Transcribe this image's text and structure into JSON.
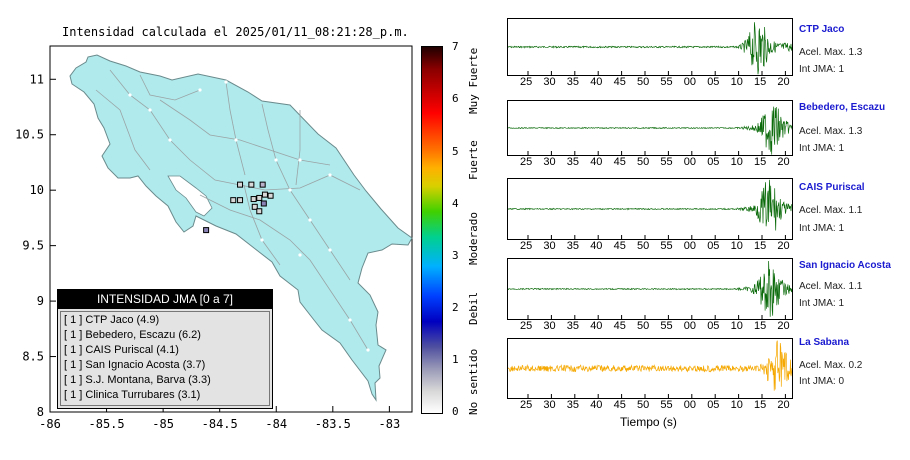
{
  "map": {
    "title": "Intensidad calculada el 2025/01/11_08:21:28_p.m.",
    "x_ticks": [
      "-86",
      "-85.5",
      "-85",
      "-84.5",
      "-84",
      "-83.5",
      "-83"
    ],
    "x_values": [
      -86,
      -85.5,
      -85,
      -84.5,
      -84,
      -83.5,
      -83
    ],
    "y_ticks": [
      "11",
      "10.5",
      "10",
      "9.5",
      "9",
      "8.5",
      "8"
    ],
    "y_values": [
      11,
      10.5,
      10,
      9.5,
      9,
      8.5,
      8
    ],
    "xlim": [
      -86,
      -82.8
    ],
    "ylim": [
      8,
      11.3
    ],
    "land_color": "#b0eaec",
    "stations": [
      {
        "lon": -84.32,
        "lat": 10.05,
        "color": "#d9d9d9"
      },
      {
        "lon": -84.22,
        "lat": 10.05,
        "color": "#d9d9d9"
      },
      {
        "lon": -84.12,
        "lat": 10.05,
        "color": "#b9b1c9"
      },
      {
        "lon": -84.1,
        "lat": 9.96,
        "color": "#d9d9d9"
      },
      {
        "lon": -84.05,
        "lat": 9.95,
        "color": "#d9d9d9"
      },
      {
        "lon": -84.15,
        "lat": 9.93,
        "color": "#d9d9d9"
      },
      {
        "lon": -84.38,
        "lat": 9.91,
        "color": "#d9d9d9"
      },
      {
        "lon": -84.32,
        "lat": 9.91,
        "color": "#d9d9d9"
      },
      {
        "lon": -84.2,
        "lat": 9.92,
        "color": "#d9d9d9"
      },
      {
        "lon": -84.11,
        "lat": 9.88,
        "color": "#8a82b4"
      },
      {
        "lon": -84.19,
        "lat": 9.85,
        "color": "#d9d9d9"
      },
      {
        "lon": -84.15,
        "lat": 9.81,
        "color": "#d9d9d9"
      },
      {
        "lon": -84.62,
        "lat": 9.64,
        "color": "#8a82b4"
      }
    ]
  },
  "legend": {
    "title": "INTENSIDAD JMA [0 a 7]",
    "items": [
      "[ 1 ]  CTP Jaco (4.9)",
      "[ 1 ]  Bebedero, Escazu (6.2)",
      "[ 1 ]  CAIS Puriscal (4.1)",
      "[ 1 ]  San Ignacio Acosta (3.7)",
      "[ 1 ]  S.J. Montana, Barva (3.3)",
      "[ 1 ]  Clinica Turrubares (3.1)"
    ]
  },
  "colorbar": {
    "ticks": [
      "7",
      "6",
      "5",
      "4",
      "3",
      "2",
      "1",
      "0"
    ],
    "labels": [
      "Muy Fuerte",
      "Fuerte",
      "Moderado",
      "Debil",
      "No sentido"
    ]
  },
  "waveforms": {
    "x_ticks": [
      "25",
      "30",
      "35",
      "40",
      "45",
      "50",
      "55",
      "00",
      "05",
      "10",
      "15",
      "20"
    ],
    "xlabel": "Tiempo (s)",
    "stations": [
      {
        "name": "CTP Jaco",
        "accel": "Acel. Max. 1.3",
        "jma": "Int JMA: 1",
        "color": "#0b6b0b",
        "onset": 0.79,
        "peak": 0.88,
        "amp": 0.95,
        "noise": 0.03
      },
      {
        "name": "Bebedero, Escazu",
        "accel": "Acel. Max. 1.3",
        "jma": "Int JMA: 1",
        "color": "#0b6b0b",
        "onset": 0.78,
        "peak": 0.93,
        "amp": 0.95,
        "noise": 0.02
      },
      {
        "name": "CAIS Puriscal",
        "accel": "Acel. Max. 1.1",
        "jma": "Int JMA: 1",
        "color": "#0b6b0b",
        "onset": 0.78,
        "peak": 0.92,
        "amp": 0.95,
        "noise": 0.02
      },
      {
        "name": "San Ignacio Acosta",
        "accel": "Acel. Max. 1.1",
        "jma": "Int JMA: 1",
        "color": "#0b6b0b",
        "onset": 0.78,
        "peak": 0.92,
        "amp": 0.95,
        "noise": 0.02
      },
      {
        "name": "La Sabana",
        "accel": "Acel. Max. 0.2",
        "jma": "Int JMA: 0",
        "color": "#f5a800",
        "onset": 0.8,
        "peak": 0.95,
        "amp": 0.95,
        "noise": 0.12
      }
    ]
  }
}
